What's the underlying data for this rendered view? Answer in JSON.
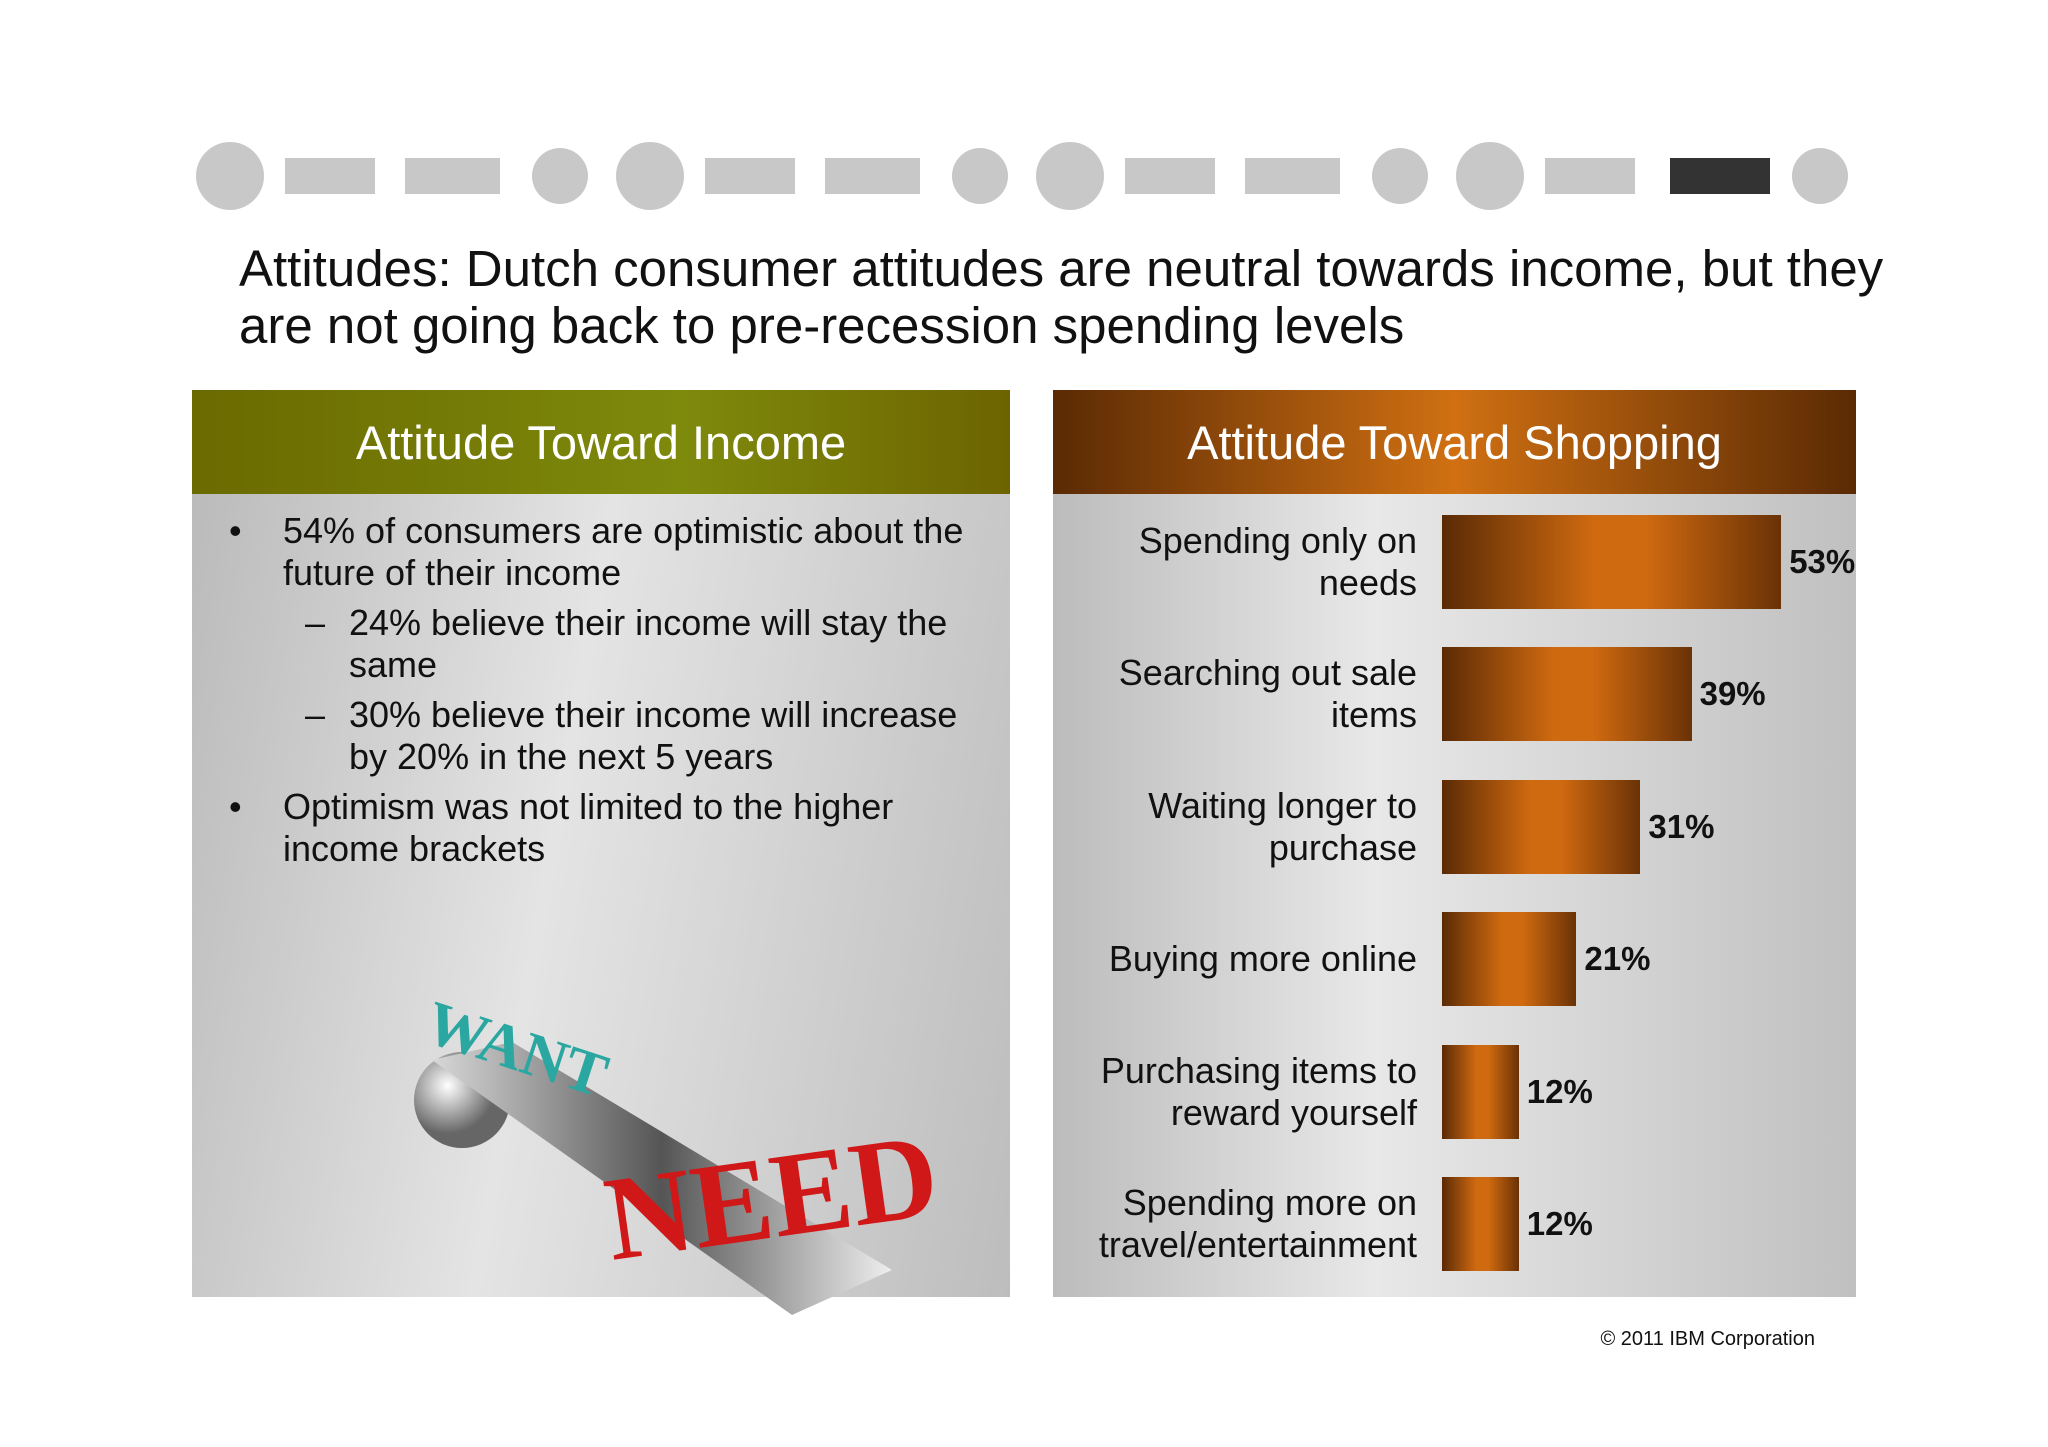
{
  "slide": {
    "title": "Attitudes: Dutch consumer attitudes are neutral towards income, but they are not going back to pre-recession spending levels",
    "footer": "© 2011 IBM Corporation"
  },
  "income_panel": {
    "title": "Attitude Toward Income",
    "bullets": [
      {
        "level": 1,
        "text": "54% of consumers are optimistic about the future of their income"
      },
      {
        "level": 2,
        "text": "24% believe their income will stay the same"
      },
      {
        "level": 2,
        "text": "30% believe their income will increase by 20% in the next 5 years"
      },
      {
        "level": 1,
        "text": "Optimism was not limited to the higher income brackets"
      }
    ],
    "illustration": {
      "light": "WANT",
      "heavy": "NEED"
    }
  },
  "chart_data": {
    "type": "bar",
    "orientation": "horizontal",
    "title": "Attitude Toward Shopping",
    "categories": [
      "Spending only on needs",
      "Searching out sale items",
      "Waiting longer to purchase",
      "Buying more online",
      "Purchasing items to reward yourself",
      "Spending more on travel/entertainment"
    ],
    "values": [
      53,
      39,
      31,
      21,
      12,
      12
    ],
    "value_labels": [
      "53%",
      "39%",
      "31%",
      "21%",
      "12%",
      "12%"
    ],
    "color": "#d06a10"
  }
}
